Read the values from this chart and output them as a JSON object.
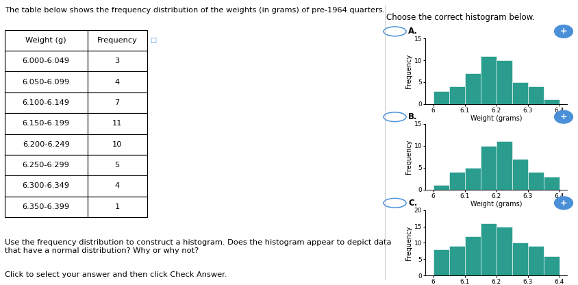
{
  "title_text": "The table below shows the frequency distribution of the weights (in grams) of pre-1964 quarters.",
  "choose_text": "Choose the correct histogram below.",
  "table_headers": [
    "Weight (g)",
    "Frequency"
  ],
  "table_rows": [
    [
      "6.000-6.049",
      "3"
    ],
    [
      "6.050-6.099",
      "4"
    ],
    [
      "6.100-6.149",
      "7"
    ],
    [
      "6.150-6.199",
      "11"
    ],
    [
      "6.200-6.249",
      "10"
    ],
    [
      "6.250-6.299",
      "5"
    ],
    [
      "6.300-6.349",
      "4"
    ],
    [
      "6.350-6.399",
      "1"
    ]
  ],
  "question_text": "Use the frequency distribution to construct a histogram. Does the histogram appear to depict data\nthat have a normal distribution? Why or why not?",
  "footer_text": "Click to select your answer and then click Check Answer.",
  "hist_A_freqs": [
    3,
    4,
    7,
    11,
    10,
    5,
    4,
    1
  ],
  "hist_B_freqs": [
    1,
    4,
    5,
    10,
    11,
    7,
    4,
    3
  ],
  "hist_C_freqs": [
    8,
    9,
    12,
    16,
    15,
    10,
    9,
    6
  ],
  "bar_color": "#2a9d8f",
  "xlim_lo": 5.975,
  "xlim_hi": 6.425,
  "xticks": [
    6.0,
    6.1,
    6.2,
    6.3,
    6.4
  ],
  "xtick_labels": [
    "6",
    "6.1",
    "6.2",
    "6.3",
    "6.4"
  ],
  "bin_edges": [
    6.0,
    6.05,
    6.1,
    6.15,
    6.2,
    6.25,
    6.3,
    6.35,
    6.4
  ],
  "xlabel": "Weight (grams)",
  "ylabel": "Frequency",
  "hist_A_ylim": [
    0,
    15
  ],
  "hist_A_yticks": [
    0,
    5,
    10,
    15
  ],
  "hist_B_ylim": [
    0,
    15
  ],
  "hist_B_yticks": [
    0,
    5,
    10,
    15
  ],
  "hist_C_ylim": [
    0,
    20
  ],
  "hist_C_yticks": [
    0,
    5,
    10,
    15,
    20
  ],
  "option_circle_color": "#4a90d9",
  "zoom_icon_color": "#4a90d9"
}
